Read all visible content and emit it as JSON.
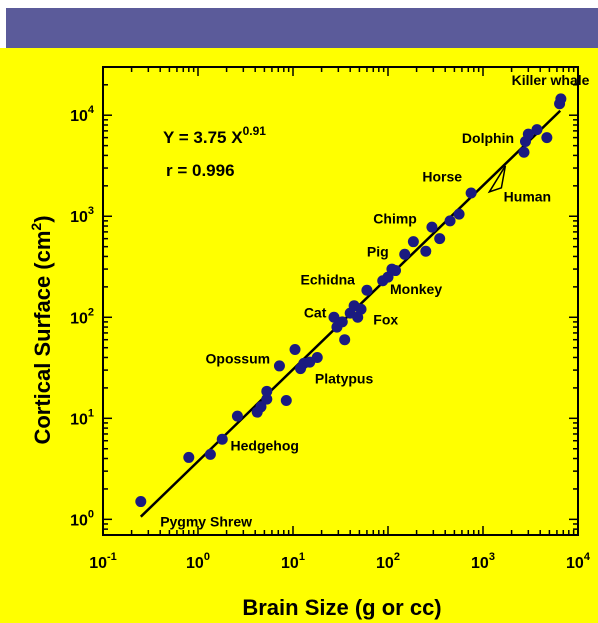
{
  "chart_data": {
    "type": "scatter",
    "xscale": "log",
    "yscale": "log",
    "xlim": [
      0.1,
      10000
    ],
    "ylim": [
      0.7,
      30000
    ],
    "xlabel": "Brain Size (g or cc)",
    "ylabel_main": "Cortical Surface (cm",
    "ylabel_sup": "2",
    "ylabel_end": ")",
    "xticks": [
      {
        "value": 0.1,
        "base": "10",
        "exp": "-1"
      },
      {
        "value": 1,
        "base": "10",
        "exp": "0"
      },
      {
        "value": 10,
        "base": "10",
        "exp": "1"
      },
      {
        "value": 100,
        "base": "10",
        "exp": "2"
      },
      {
        "value": 1000,
        "base": "10",
        "exp": "3"
      },
      {
        "value": 10000,
        "base": "10",
        "exp": "4"
      }
    ],
    "yticks": [
      {
        "value": 1,
        "base": "10",
        "exp": "0"
      },
      {
        "value": 10,
        "base": "10",
        "exp": "1"
      },
      {
        "value": 100,
        "base": "10",
        "exp": "2"
      },
      {
        "value": 1000,
        "base": "10",
        "exp": "3"
      },
      {
        "value": 10000,
        "base": "10",
        "exp": "4"
      }
    ],
    "equation_main": "Y = 3.75 X",
    "equation_exp": "0.91",
    "r_text": "r = 0.996",
    "fit": {
      "a": 3.75,
      "b": 0.91,
      "x_range": [
        0.25,
        6500
      ]
    },
    "points": [
      [
        0.25,
        1.5
      ],
      [
        0.8,
        4.1
      ],
      [
        1.35,
        4.4
      ],
      [
        1.8,
        6.2
      ],
      [
        2.6,
        10.5
      ],
      [
        4.2,
        11.5
      ],
      [
        4.6,
        13.0
      ],
      [
        5.3,
        15.5
      ],
      [
        5.3,
        18.5
      ],
      [
        7.2,
        33
      ],
      [
        8.5,
        15
      ],
      [
        10.5,
        48
      ],
      [
        12,
        31
      ],
      [
        13,
        35
      ],
      [
        15,
        36
      ],
      [
        18,
        40
      ],
      [
        27,
        100
      ],
      [
        29,
        80
      ],
      [
        33,
        90
      ],
      [
        35,
        60
      ],
      [
        40,
        110
      ],
      [
        44,
        130
      ],
      [
        48,
        100
      ],
      [
        52,
        120
      ],
      [
        60,
        185
      ],
      [
        88,
        230
      ],
      [
        100,
        250
      ],
      [
        110,
        300
      ],
      [
        120,
        290
      ],
      [
        150,
        420
      ],
      [
        185,
        560
      ],
      [
        250,
        450
      ],
      [
        290,
        780
      ],
      [
        350,
        600
      ],
      [
        450,
        900
      ],
      [
        560,
        1050
      ],
      [
        750,
        1700
      ],
      [
        2700,
        4300
      ],
      [
        2800,
        5500
      ],
      [
        3000,
        6500
      ],
      [
        3700,
        7200
      ],
      [
        4700,
        6000
      ],
      [
        6400,
        13000
      ],
      [
        6600,
        14500
      ]
    ],
    "human_marker": {
      "x": 1350,
      "y": 2000
    },
    "annotations": [
      {
        "text": "Killer whale",
        "x": 2000,
        "y": 20000,
        "anchor": "start"
      },
      {
        "text": "Dolphin",
        "x": 600,
        "y": 5300,
        "anchor": "start"
      },
      {
        "text": "Horse",
        "x": 230,
        "y": 2200,
        "anchor": "start"
      },
      {
        "text": "Human",
        "x": 1650,
        "y": 1400,
        "anchor": "start"
      },
      {
        "text": "Chimp",
        "x": 70,
        "y": 850,
        "anchor": "start"
      },
      {
        "text": "Pig",
        "x": 60,
        "y": 400,
        "anchor": "start"
      },
      {
        "text": "Echidna",
        "x": 12,
        "y": 210,
        "anchor": "start"
      },
      {
        "text": "Monkey",
        "x": 105,
        "y": 170,
        "anchor": "start"
      },
      {
        "text": "Cat",
        "x": 13,
        "y": 100,
        "anchor": "start"
      },
      {
        "text": "Fox",
        "x": 70,
        "y": 85,
        "anchor": "start"
      },
      {
        "text": "Opossum",
        "x": 1.2,
        "y": 35,
        "anchor": "start"
      },
      {
        "text": "Platypus",
        "x": 17,
        "y": 22,
        "anchor": "start"
      },
      {
        "text": "Hedgehog",
        "x": 2.2,
        "y": 4.8,
        "anchor": "start"
      },
      {
        "text": "Pygmy Shrew",
        "x": 0.4,
        "y": 0.85,
        "anchor": "start"
      }
    ],
    "colors": {
      "background": "#ffff00",
      "points": "#1a1a80",
      "axes": "#000000",
      "header": "#5b5b9a"
    }
  }
}
